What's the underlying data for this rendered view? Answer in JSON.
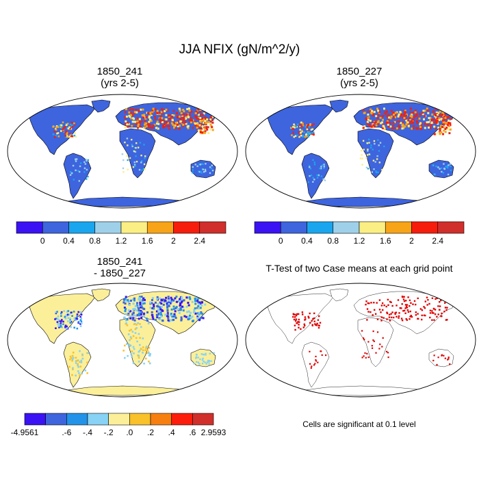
{
  "title": "JJA NFIX (gN/m^2/y)",
  "panels": {
    "a": {
      "line1": "1850_241",
      "line2": "(yrs 2-5)"
    },
    "b": {
      "line1": "1850_227",
      "line2": "(yrs 2-5)"
    },
    "c": {
      "line1": "1850_241",
      "line2": "- 1850_227"
    },
    "d": {
      "line1": "T-Test of two Case means at each grid point"
    }
  },
  "colorbar_top": {
    "colors": [
      "#3b12f4",
      "#3e64de",
      "#1aa6ee",
      "#9fd0ea",
      "#fbef83",
      "#f8a418",
      "#f71d0c",
      "#d02f2b"
    ],
    "labels": [
      "0",
      "0.4",
      "0.8",
      "1.2",
      "1.6",
      "2",
      "2.4"
    ]
  },
  "colorbar_diff": {
    "colors": [
      "#3b12f4",
      "#3e64de",
      "#2293e8",
      "#87d2f5",
      "#fbef9a",
      "#f9c12a",
      "#f77f10",
      "#fc1d0c",
      "#d02f2b"
    ],
    "labels": [
      "-4.9561",
      ".-6",
      "-.4",
      "-.2",
      ".0",
      ".2",
      ".4",
      ".6",
      "2.9593"
    ]
  },
  "ttest_note": "Cells are significant at 0.1 level",
  "colors": {
    "ocean": "#ffffff",
    "land_base": "#3e64de",
    "sig": "#e00000"
  }
}
